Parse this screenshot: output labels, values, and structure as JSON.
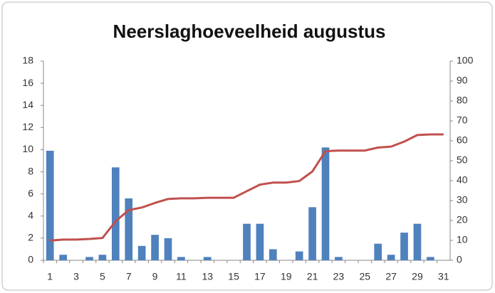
{
  "chart_data": {
    "type": "bar+line",
    "title": "Neerslaghoeveelheid augustus",
    "categories": [
      "1",
      null,
      "3",
      null,
      "5",
      null,
      "7",
      null,
      "9",
      null,
      "11",
      null,
      "13",
      null,
      "15",
      null,
      "17",
      null,
      "19",
      null,
      "21",
      null,
      "23",
      null,
      "25",
      null,
      "27",
      null,
      "29",
      null,
      "31"
    ],
    "series": [
      {
        "type": "bar",
        "color": "#4f81bd",
        "axis": "y",
        "values": [
          9.9,
          0.5,
          0,
          0.3,
          0.5,
          8.4,
          5.6,
          1.3,
          2.3,
          2.0,
          0.3,
          0,
          0.3,
          0,
          0,
          3.3,
          3.3,
          1.0,
          0,
          0.8,
          4.8,
          10.2,
          0.3,
          0,
          0,
          1.5,
          0.5,
          2.5,
          3.3,
          0.3,
          0
        ]
      },
      {
        "type": "line",
        "color": "#c0504d",
        "axis": "y2",
        "values": [
          9.9,
          10.4,
          10.4,
          10.7,
          11.2,
          19.6,
          25.2,
          26.5,
          28.8,
          30.8,
          31.1,
          31.1,
          31.4,
          31.4,
          31.4,
          34.7,
          38.0,
          39.0,
          39.0,
          39.8,
          44.6,
          54.8,
          55.1,
          55.1,
          55.1,
          56.6,
          57.1,
          59.6,
          62.9,
          63.2,
          63.2
        ]
      }
    ],
    "ylim": [
      0,
      18
    ],
    "yticks": [
      0,
      2,
      4,
      6,
      8,
      10,
      12,
      14,
      16,
      18
    ],
    "y2lim": [
      0,
      100
    ],
    "y2ticks": [
      0,
      10,
      20,
      30,
      40,
      50,
      60,
      70,
      80,
      90,
      100
    ],
    "grid": false
  }
}
